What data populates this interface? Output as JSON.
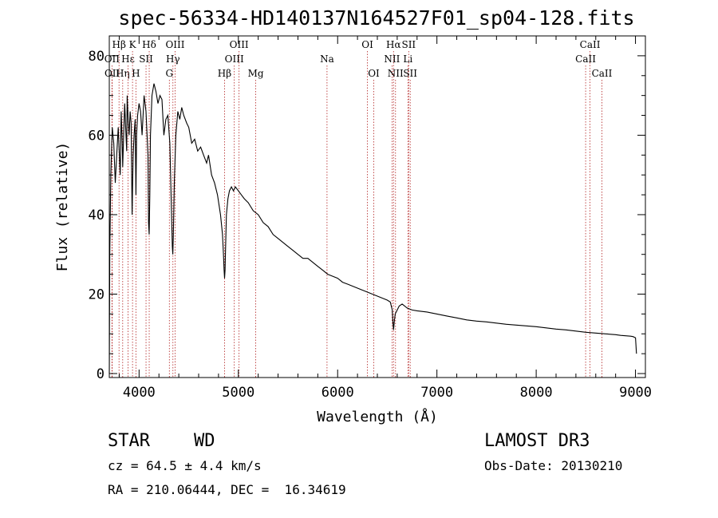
{
  "info": {
    "object_class": "STAR",
    "subclass": "WD",
    "survey": "LAMOST DR3",
    "redshift_text": "cz = 64.5 ± 4.4 km/s",
    "obs_date_text": "Obs-Date: 20130210",
    "coords_text": "RA = 210.06444, DEC =  16.34619"
  },
  "chart_data": {
    "type": "line",
    "title": "spec-56334-HD140137N164527F01_sp04-128.fits",
    "xlabel": "Wavelength (Å)",
    "ylabel": "Flux (relative)",
    "xlim": [
      3700,
      9100
    ],
    "ylim": [
      -1,
      85
    ],
    "xticks": [
      4000,
      5000,
      6000,
      7000,
      8000,
      9000
    ],
    "yticks": [
      0,
      20,
      40,
      60,
      80
    ],
    "x_minor_step": 200,
    "y_minor_step": 5,
    "grid": false,
    "line_color": "#000000",
    "marker_color": "#b22222",
    "series": [
      {
        "x": [
          3700,
          3705,
          3715,
          3730,
          3745,
          3760,
          3775,
          3790,
          3800,
          3810,
          3820,
          3830,
          3835,
          3845,
          3855,
          3865,
          3875,
          3880,
          3890,
          3900,
          3910,
          3920,
          3930,
          3940,
          3950,
          3960,
          3968,
          3975,
          3985,
          4000,
          4015,
          4030,
          4050,
          4070,
          4090,
          4095,
          4102,
          4108,
          4115,
          4130,
          4150,
          4170,
          4190,
          4210,
          4230,
          4250,
          4270,
          4290,
          4310,
          4325,
          4335,
          4340,
          4345,
          4355,
          4370,
          4390,
          4410,
          4430,
          4450,
          4480,
          4500,
          4530,
          4560,
          4590,
          4620,
          4650,
          4680,
          4700,
          4730,
          4760,
          4790,
          4820,
          4840,
          4850,
          4856,
          4861,
          4866,
          4872,
          4880,
          4895,
          4910,
          4930,
          4950,
          4970,
          5000,
          5030,
          5060,
          5100,
          5150,
          5200,
          5250,
          5300,
          5350,
          5400,
          5450,
          5500,
          5550,
          5600,
          5650,
          5700,
          5750,
          5800,
          5850,
          5900,
          5950,
          6000,
          6050,
          6100,
          6150,
          6200,
          6250,
          6300,
          6350,
          6400,
          6450,
          6500,
          6530,
          6550,
          6557,
          6563,
          6570,
          6580,
          6600,
          6620,
          6650,
          6700,
          6750,
          6800,
          6900,
          7000,
          7100,
          7200,
          7300,
          7400,
          7500,
          7600,
          7700,
          7800,
          7900,
          8000,
          8100,
          8200,
          8300,
          8400,
          8500,
          8600,
          8700,
          8800,
          8850,
          8900,
          8950,
          8975,
          9000,
          9010
        ],
        "y": [
          0,
          30,
          50,
          62,
          58,
          48,
          55,
          62,
          56,
          50,
          66,
          58,
          52,
          60,
          68,
          62,
          56,
          70,
          64,
          60,
          66,
          63,
          40,
          55,
          60,
          64,
          45,
          60,
          65,
          68,
          66,
          60,
          70,
          66,
          55,
          38,
          35,
          45,
          60,
          70,
          73,
          71,
          68,
          70,
          69,
          60,
          64,
          65,
          58,
          42,
          32,
          30,
          35,
          48,
          60,
          66,
          64,
          67,
          65,
          63,
          62,
          58,
          59,
          56,
          57,
          55,
          53,
          55,
          50,
          48,
          45,
          40,
          35,
          30,
          26,
          24,
          26,
          32,
          40,
          44,
          46,
          47,
          46,
          47,
          46,
          45,
          44,
          43,
          41,
          40,
          38,
          37,
          35,
          34,
          33,
          32,
          31,
          30,
          29,
          29,
          28,
          27,
          26,
          25,
          24.5,
          24,
          23,
          22.5,
          22,
          21.5,
          21,
          20.5,
          20,
          19.5,
          19,
          18.5,
          18,
          16,
          13,
          11,
          13,
          15,
          16,
          17,
          17.5,
          16.5,
          16,
          15.8,
          15.5,
          15,
          14.5,
          14,
          13.5,
          13.2,
          13,
          12.7,
          12.4,
          12.2,
          12,
          11.8,
          11.5,
          11.2,
          11,
          10.7,
          10.4,
          10.2,
          10,
          9.8,
          9.6,
          9.5,
          9.4,
          9.3,
          9,
          5
        ]
      }
    ],
    "line_markers": [
      {
        "name": "Hβ",
        "wl": 3798,
        "row": 0
      },
      {
        "name": "OII",
        "wl": 3727,
        "row": 1
      },
      {
        "name": "OII",
        "wl": 3729,
        "row": 2
      },
      {
        "name": "Hη",
        "wl": 3835,
        "row": 2
      },
      {
        "name": "Hε",
        "wl": 3889,
        "row": 1
      },
      {
        "name": "K",
        "wl": 3934,
        "row": 0
      },
      {
        "name": "SII",
        "wl": 4070,
        "row": 1
      },
      {
        "name": "H",
        "wl": 3968,
        "row": 2
      },
      {
        "name": "Hδ",
        "wl": 4102,
        "row": 0
      },
      {
        "name": "OIII",
        "wl": 4363,
        "row": 0
      },
      {
        "name": "Hγ",
        "wl": 4341,
        "row": 1
      },
      {
        "name": "G",
        "wl": 4305,
        "row": 2
      },
      {
        "name": "Hβ",
        "wl": 4861,
        "row": 2
      },
      {
        "name": "OIII",
        "wl": 5007,
        "row": 0
      },
      {
        "name": "OIII",
        "wl": 4959,
        "row": 1
      },
      {
        "name": "Mg",
        "wl": 5175,
        "row": 2
      },
      {
        "name": "Na",
        "wl": 5893,
        "row": 1
      },
      {
        "name": "OI",
        "wl": 6300,
        "row": 0
      },
      {
        "name": "OI",
        "wl": 6364,
        "row": 2
      },
      {
        "name": "Hα",
        "wl": 6563,
        "row": 0
      },
      {
        "name": "SII",
        "wl": 6716,
        "row": 0
      },
      {
        "name": "NII",
        "wl": 6548,
        "row": 1
      },
      {
        "name": "Li",
        "wl": 6708,
        "row": 1
      },
      {
        "name": "NII",
        "wl": 6583,
        "row": 2
      },
      {
        "name": "SII",
        "wl": 6731,
        "row": 2
      },
      {
        "name": "CaII",
        "wl": 8542,
        "row": 0
      },
      {
        "name": "CaII",
        "wl": 8498,
        "row": 1
      },
      {
        "name": "CaII",
        "wl": 8662,
        "row": 2
      }
    ]
  }
}
